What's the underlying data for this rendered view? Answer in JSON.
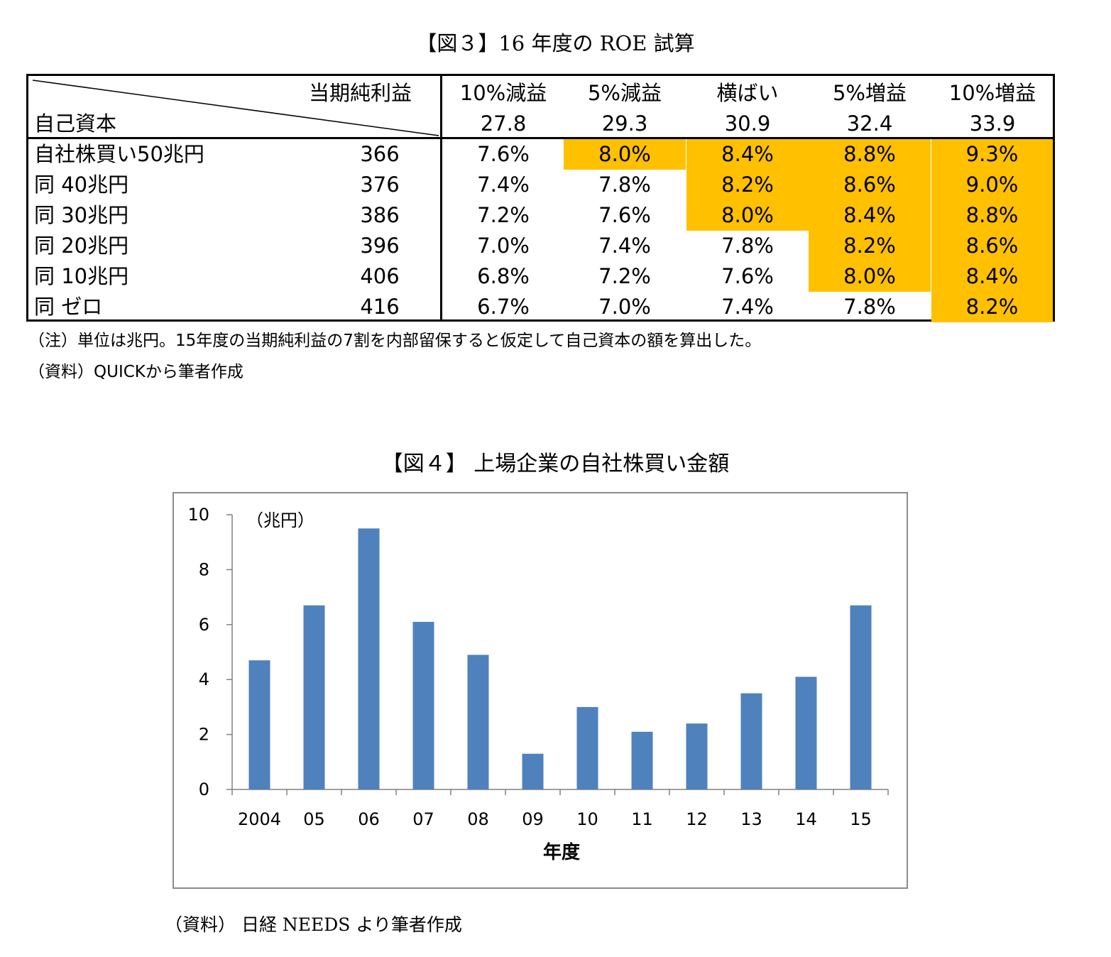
{
  "fig3": {
    "title": "【図３】16 年度の ROE 試算",
    "header": {
      "corner_top": "当期純利益",
      "corner_bottom": "自己資本",
      "columns": [
        {
          "label": "10%減益",
          "value": "27.8"
        },
        {
          "label": "5%減益",
          "value": "29.3"
        },
        {
          "label": "横ばい",
          "value": "30.9"
        },
        {
          "label": "5%増益",
          "value": "32.4"
        },
        {
          "label": "10%増益",
          "value": "33.9"
        }
      ]
    },
    "rows": [
      {
        "label": "自社株買い50兆円",
        "equity": "366",
        "values": [
          "7.6%",
          "8.0%",
          "8.4%",
          "8.8%",
          "9.3%"
        ],
        "highlight": [
          false,
          true,
          true,
          true,
          true
        ]
      },
      {
        "label": "同 40兆円",
        "equity": "376",
        "values": [
          "7.4%",
          "7.8%",
          "8.2%",
          "8.6%",
          "9.0%"
        ],
        "highlight": [
          false,
          false,
          true,
          true,
          true
        ]
      },
      {
        "label": "同 30兆円",
        "equity": "386",
        "values": [
          "7.2%",
          "7.6%",
          "8.0%",
          "8.4%",
          "8.8%"
        ],
        "highlight": [
          false,
          false,
          true,
          true,
          true
        ]
      },
      {
        "label": "同 20兆円",
        "equity": "396",
        "values": [
          "7.0%",
          "7.4%",
          "7.8%",
          "8.2%",
          "8.6%"
        ],
        "highlight": [
          false,
          false,
          false,
          true,
          true
        ]
      },
      {
        "label": "同 10兆円",
        "equity": "406",
        "values": [
          "6.8%",
          "7.2%",
          "7.6%",
          "8.0%",
          "8.4%"
        ],
        "highlight": [
          false,
          false,
          false,
          true,
          true
        ]
      },
      {
        "label": "同 ゼロ",
        "equity": "416",
        "values": [
          "6.7%",
          "7.0%",
          "7.4%",
          "7.8%",
          "8.2%"
        ],
        "highlight": [
          false,
          false,
          false,
          false,
          true
        ]
      }
    ],
    "highlight_color": "#FFC000",
    "note": "（注）単位は兆円。15年度の当期純利益の7割を内部留保すると仮定して自己資本の額を算出した。",
    "source": "（資料）QUICKから筆者作成"
  },
  "fig4": {
    "title": "【図４】 上場企業の自社株買い金額",
    "source": "（資料） 日経 NEEDS より筆者作成"
  },
  "chart_data": {
    "type": "bar",
    "categories": [
      "2004",
      "05",
      "06",
      "07",
      "08",
      "09",
      "10",
      "11",
      "12",
      "13",
      "14",
      "15"
    ],
    "values": [
      4.7,
      6.7,
      9.5,
      6.1,
      4.9,
      1.3,
      3.0,
      2.1,
      2.4,
      3.5,
      4.1,
      6.7
    ],
    "title": "",
    "unit_label": "（兆円）",
    "xlabel": "年度",
    "ylabel": "",
    "ylim": [
      0,
      10
    ],
    "yticks": [
      "0",
      "2",
      "4",
      "6",
      "8",
      "10"
    ],
    "bar_color": "#4F81BD",
    "grid": false,
    "legend": "none"
  }
}
